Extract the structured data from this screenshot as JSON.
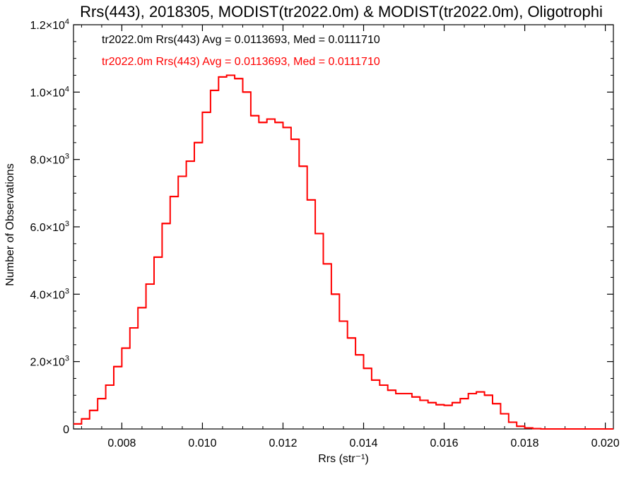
{
  "chart_data": {
    "type": "line",
    "title": "Rrs(443), 2018305, MODIST(tr2022.0m) & MODIST(tr2022.0m), Oligotrophi",
    "xlabel": "Rrs (str⁻¹)",
    "ylabel": "Number of Observations",
    "xlim": [
      0.0068,
      0.0202
    ],
    "ylim": [
      0,
      12000
    ],
    "x_ticks": [
      0.008,
      0.01,
      0.012,
      0.014,
      0.016,
      0.018,
      0.02
    ],
    "x_tick_labels": [
      "0.008",
      "0.010",
      "0.012",
      "0.014",
      "0.016",
      "0.018",
      "0.020"
    ],
    "y_ticks": [
      {
        "value": 0,
        "mant": "0",
        "exp": ""
      },
      {
        "value": 2000,
        "mant": "2.0×10",
        "exp": "3"
      },
      {
        "value": 4000,
        "mant": "4.0×10",
        "exp": "3"
      },
      {
        "value": 6000,
        "mant": "6.0×10",
        "exp": "3"
      },
      {
        "value": 8000,
        "mant": "8.0×10",
        "exp": "3"
      },
      {
        "value": 10000,
        "mant": "1.0×10",
        "exp": "4"
      },
      {
        "value": 12000,
        "mant": "1.2×10",
        "exp": "4"
      }
    ],
    "annotations": [
      {
        "text": "tr2022.0m Rrs(443) Avg = 0.0113693, Med = 0.0111710",
        "color": "#000000"
      },
      {
        "text": "tr2022.0m Rrs(443) Avg = 0.0113693, Med = 0.0111710",
        "color": "#ff0000"
      }
    ],
    "series": [
      {
        "color": "#ff0000",
        "style": "step",
        "x": [
          0.0068,
          0.007,
          0.0072,
          0.0074,
          0.0076,
          0.0078,
          0.008,
          0.0082,
          0.0084,
          0.0086,
          0.0088,
          0.009,
          0.0092,
          0.0094,
          0.0096,
          0.0098,
          0.01,
          0.0102,
          0.0104,
          0.0106,
          0.0108,
          0.011,
          0.0112,
          0.0114,
          0.0116,
          0.0118,
          0.012,
          0.0122,
          0.0124,
          0.0126,
          0.0128,
          0.013,
          0.0132,
          0.0134,
          0.0136,
          0.0138,
          0.014,
          0.0142,
          0.0144,
          0.0146,
          0.0148,
          0.015,
          0.0152,
          0.0154,
          0.0156,
          0.0158,
          0.016,
          0.0162,
          0.0164,
          0.0166,
          0.0168,
          0.017,
          0.0172,
          0.0174,
          0.0176,
          0.0178,
          0.018,
          0.0182,
          0.0184,
          0.0186,
          0.0188,
          0.019,
          0.0192,
          0.0194,
          0.0196,
          0.0198,
          0.02,
          0.0202
        ],
        "values": [
          150,
          300,
          550,
          900,
          1300,
          1850,
          2400,
          3000,
          3600,
          4300,
          5100,
          6100,
          6900,
          7500,
          7950,
          8500,
          9400,
          10050,
          10450,
          10500,
          10400,
          10000,
          9300,
          9100,
          9200,
          9100,
          8950,
          8600,
          7800,
          6800,
          5800,
          4900,
          4000,
          3200,
          2700,
          2200,
          1800,
          1450,
          1300,
          1150,
          1050,
          1050,
          950,
          850,
          780,
          720,
          700,
          780,
          900,
          1050,
          1100,
          1000,
          750,
          450,
          200,
          80,
          30,
          10,
          0,
          0,
          0,
          0,
          0,
          0,
          0,
          0,
          0,
          0
        ]
      }
    ]
  }
}
